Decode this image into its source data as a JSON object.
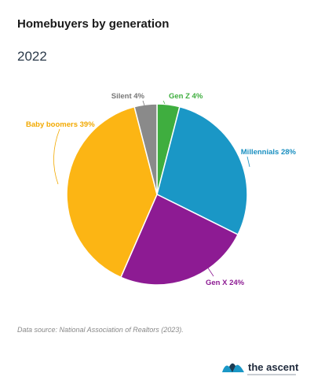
{
  "header": {
    "title": "Homebuyers by generation",
    "subtitle": "2022"
  },
  "footer": {
    "source": "Data source: National Association of Realtors (2023).",
    "brand": "the ascent"
  },
  "chart_data": {
    "type": "pie",
    "title": "Homebuyers by generation",
    "subtitle": "2022",
    "start": "12 o'clock",
    "direction": "clockwise",
    "slices": [
      {
        "label": "Gen Z",
        "value": 4,
        "display": "Gen Z 4%",
        "color": "#3fae3f",
        "label_color": "#3fae3f"
      },
      {
        "label": "Millennials",
        "value": 28,
        "display": "Millennials 28%",
        "color": "#1a97c6",
        "label_color": "#1a8fc0"
      },
      {
        "label": "Gen X",
        "value": 24,
        "display": "Gen X 24%",
        "color": "#8d1b93",
        "label_color": "#8d1b93"
      },
      {
        "label": "Baby boomers",
        "value": 39,
        "display": "Baby boomers 39%",
        "color": "#fcb514",
        "label_color": "#f2a900"
      },
      {
        "label": "Silent",
        "value": 4,
        "display": "Silent 4%",
        "color": "#8a8a8a",
        "label_color": "#777777"
      }
    ]
  }
}
